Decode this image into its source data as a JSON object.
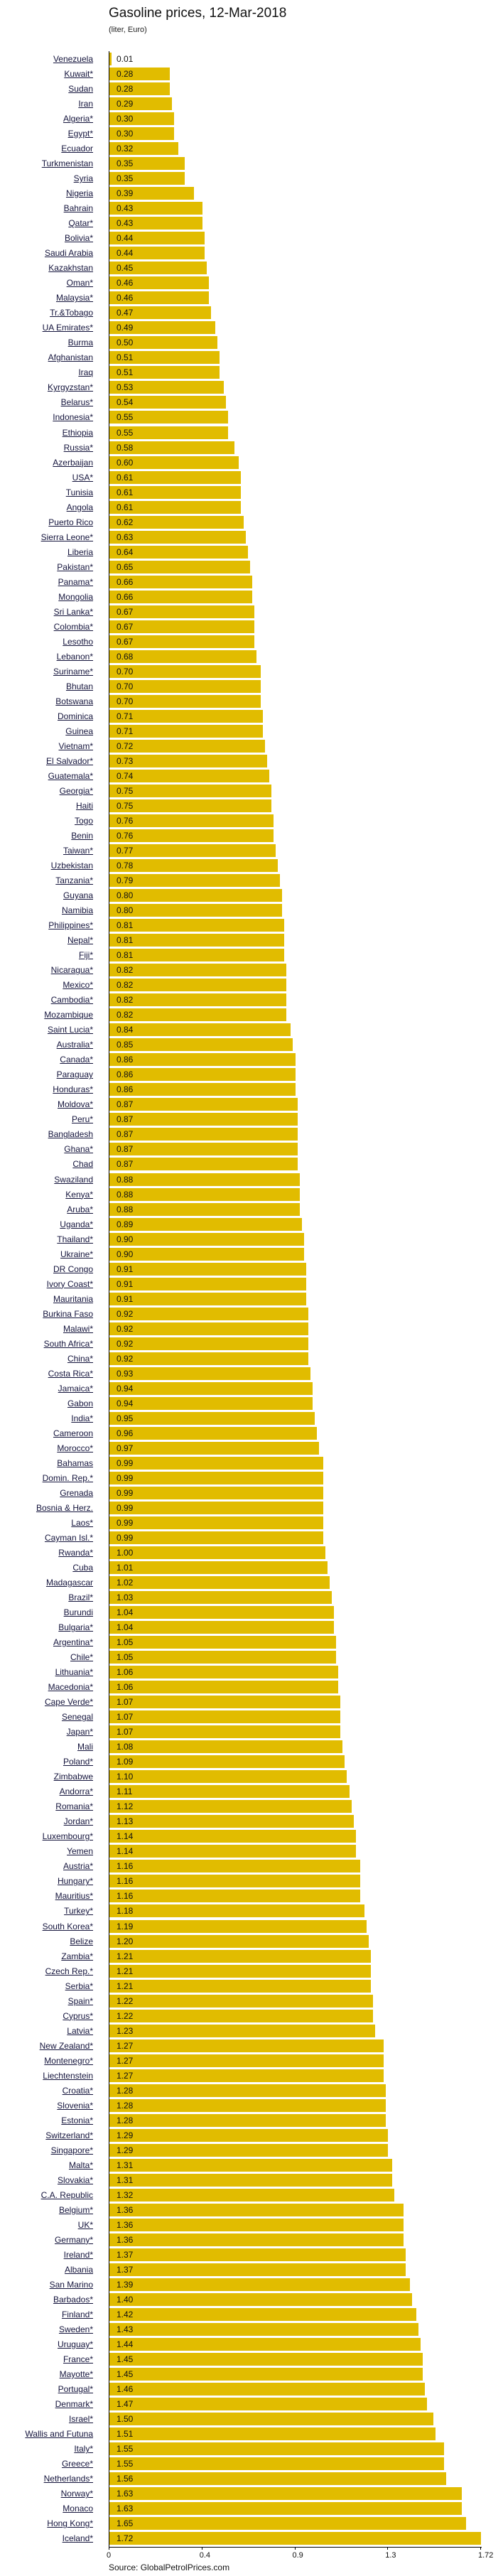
{
  "chart_data": {
    "type": "bar",
    "orientation": "horizontal",
    "title": "Gasoline prices, 12-Mar-2018",
    "subtitle": "(liter, Euro)",
    "source": "Source: GlobalPetrolPrices.com",
    "xlim": [
      0,
      1.72
    ],
    "x_ticks": [
      0,
      0.43,
      0.86,
      1.29,
      1.72
    ],
    "x_tick_labels": [
      "0",
      "0.4",
      "0.9",
      "1.3",
      "1.72"
    ],
    "bar_color": "#E1BC00",
    "categories": [
      "Venezuela",
      "Kuwait*",
      "Sudan",
      "Iran",
      "Algeria*",
      "Egypt*",
      "Ecuador",
      "Turkmenistan",
      "Syria",
      "Nigeria",
      "Bahrain",
      "Qatar*",
      "Bolivia*",
      "Saudi Arabia",
      "Kazakhstan",
      "Oman*",
      "Malaysia*",
      "Tr.&Tobago",
      "UA Emirates*",
      "Burma",
      "Afghanistan",
      "Iraq",
      "Kyrgyzstan*",
      "Belarus*",
      "Indonesia*",
      "Ethiopia",
      "Russia*",
      "Azerbaijan",
      "USA*",
      "Tunisia",
      "Angola",
      "Puerto Rico",
      "Sierra Leone*",
      "Liberia",
      "Pakistan*",
      "Panama*",
      "Mongolia",
      "Sri Lanka*",
      "Colombia*",
      "Lesotho",
      "Lebanon*",
      "Suriname*",
      "Bhutan",
      "Botswana",
      "Dominica",
      "Guinea",
      "Vietnam*",
      "El Salvador*",
      "Guatemala*",
      "Georgia*",
      "Haiti",
      "Togo",
      "Benin",
      "Taiwan*",
      "Uzbekistan",
      "Tanzania*",
      "Guyana",
      "Namibia",
      "Philippines*",
      "Nepal*",
      "Fiji*",
      "Nicaragua*",
      "Mexico*",
      "Cambodia*",
      "Mozambique",
      "Saint Lucia*",
      "Australia*",
      "Canada*",
      "Paraguay",
      "Honduras*",
      "Moldova*",
      "Peru*",
      "Bangladesh",
      "Ghana*",
      "Chad",
      "Swaziland",
      "Kenya*",
      "Aruba*",
      "Uganda*",
      "Thailand*",
      "Ukraine*",
      "DR Congo",
      "Ivory Coast*",
      "Mauritania",
      "Burkina Faso",
      "Malawi*",
      "South Africa*",
      "China*",
      "Costa Rica*",
      "Jamaica*",
      "Gabon",
      "India*",
      "Cameroon",
      "Morocco*",
      "Bahamas",
      "Domin. Rep.*",
      "Grenada",
      "Bosnia & Herz.",
      "Laos*",
      "Cayman Isl.*",
      "Rwanda*",
      "Cuba",
      "Madagascar",
      "Brazil*",
      "Burundi",
      "Bulgaria*",
      "Argentina*",
      "Chile*",
      "Lithuania*",
      "Macedonia*",
      "Cape Verde*",
      "Senegal",
      "Japan*",
      "Mali",
      "Poland*",
      "Zimbabwe",
      "Andorra*",
      "Romania*",
      "Jordan*",
      "Luxembourg*",
      "Yemen",
      "Austria*",
      "Hungary*",
      "Mauritius*",
      "Turkey*",
      "South Korea*",
      "Belize",
      "Zambia*",
      "Czech Rep.*",
      "Serbia*",
      "Spain*",
      "Cyprus*",
      "Latvia*",
      "New Zealand*",
      "Montenegro*",
      "Liechtenstein",
      "Croatia*",
      "Slovenia*",
      "Estonia*",
      "Switzerland*",
      "Singapore*",
      "Malta*",
      "Slovakia*",
      "C.A. Republic",
      "Belgium*",
      "UK*",
      "Germany*",
      "Ireland*",
      "Albania",
      "San Marino",
      "Barbados*",
      "Finland*",
      "Sweden*",
      "Uruguay*",
      "France*",
      "Mayotte*",
      "Portugal*",
      "Denmark*",
      "Israel*",
      "Wallis and Futuna",
      "Italy*",
      "Greece*",
      "Netherlands*",
      "Norway*",
      "Monaco",
      "Hong Kong*",
      "Iceland*"
    ],
    "values": [
      0.01,
      0.28,
      0.28,
      0.29,
      0.3,
      0.3,
      0.32,
      0.35,
      0.35,
      0.39,
      0.43,
      0.43,
      0.44,
      0.44,
      0.45,
      0.46,
      0.46,
      0.47,
      0.49,
      0.5,
      0.51,
      0.51,
      0.53,
      0.54,
      0.55,
      0.55,
      0.58,
      0.6,
      0.61,
      0.61,
      0.61,
      0.62,
      0.63,
      0.64,
      0.65,
      0.66,
      0.66,
      0.67,
      0.67,
      0.67,
      0.68,
      0.7,
      0.7,
      0.7,
      0.71,
      0.71,
      0.72,
      0.73,
      0.74,
      0.75,
      0.75,
      0.76,
      0.76,
      0.77,
      0.78,
      0.79,
      0.8,
      0.8,
      0.81,
      0.81,
      0.81,
      0.82,
      0.82,
      0.82,
      0.82,
      0.84,
      0.85,
      0.86,
      0.86,
      0.86,
      0.87,
      0.87,
      0.87,
      0.87,
      0.87,
      0.88,
      0.88,
      0.88,
      0.89,
      0.9,
      0.9,
      0.91,
      0.91,
      0.91,
      0.92,
      0.92,
      0.92,
      0.92,
      0.93,
      0.94,
      0.94,
      0.95,
      0.96,
      0.97,
      0.99,
      0.99,
      0.99,
      0.99,
      0.99,
      0.99,
      1.0,
      1.01,
      1.02,
      1.03,
      1.04,
      1.04,
      1.05,
      1.05,
      1.06,
      1.06,
      1.07,
      1.07,
      1.07,
      1.08,
      1.09,
      1.1,
      1.11,
      1.12,
      1.13,
      1.14,
      1.14,
      1.16,
      1.16,
      1.16,
      1.18,
      1.19,
      1.2,
      1.21,
      1.21,
      1.21,
      1.22,
      1.22,
      1.23,
      1.27,
      1.27,
      1.27,
      1.28,
      1.28,
      1.28,
      1.29,
      1.29,
      1.31,
      1.31,
      1.32,
      1.36,
      1.36,
      1.36,
      1.37,
      1.37,
      1.39,
      1.4,
      1.42,
      1.43,
      1.44,
      1.45,
      1.45,
      1.46,
      1.47,
      1.5,
      1.51,
      1.55,
      1.55,
      1.56,
      1.63,
      1.63,
      1.65,
      1.72
    ]
  }
}
